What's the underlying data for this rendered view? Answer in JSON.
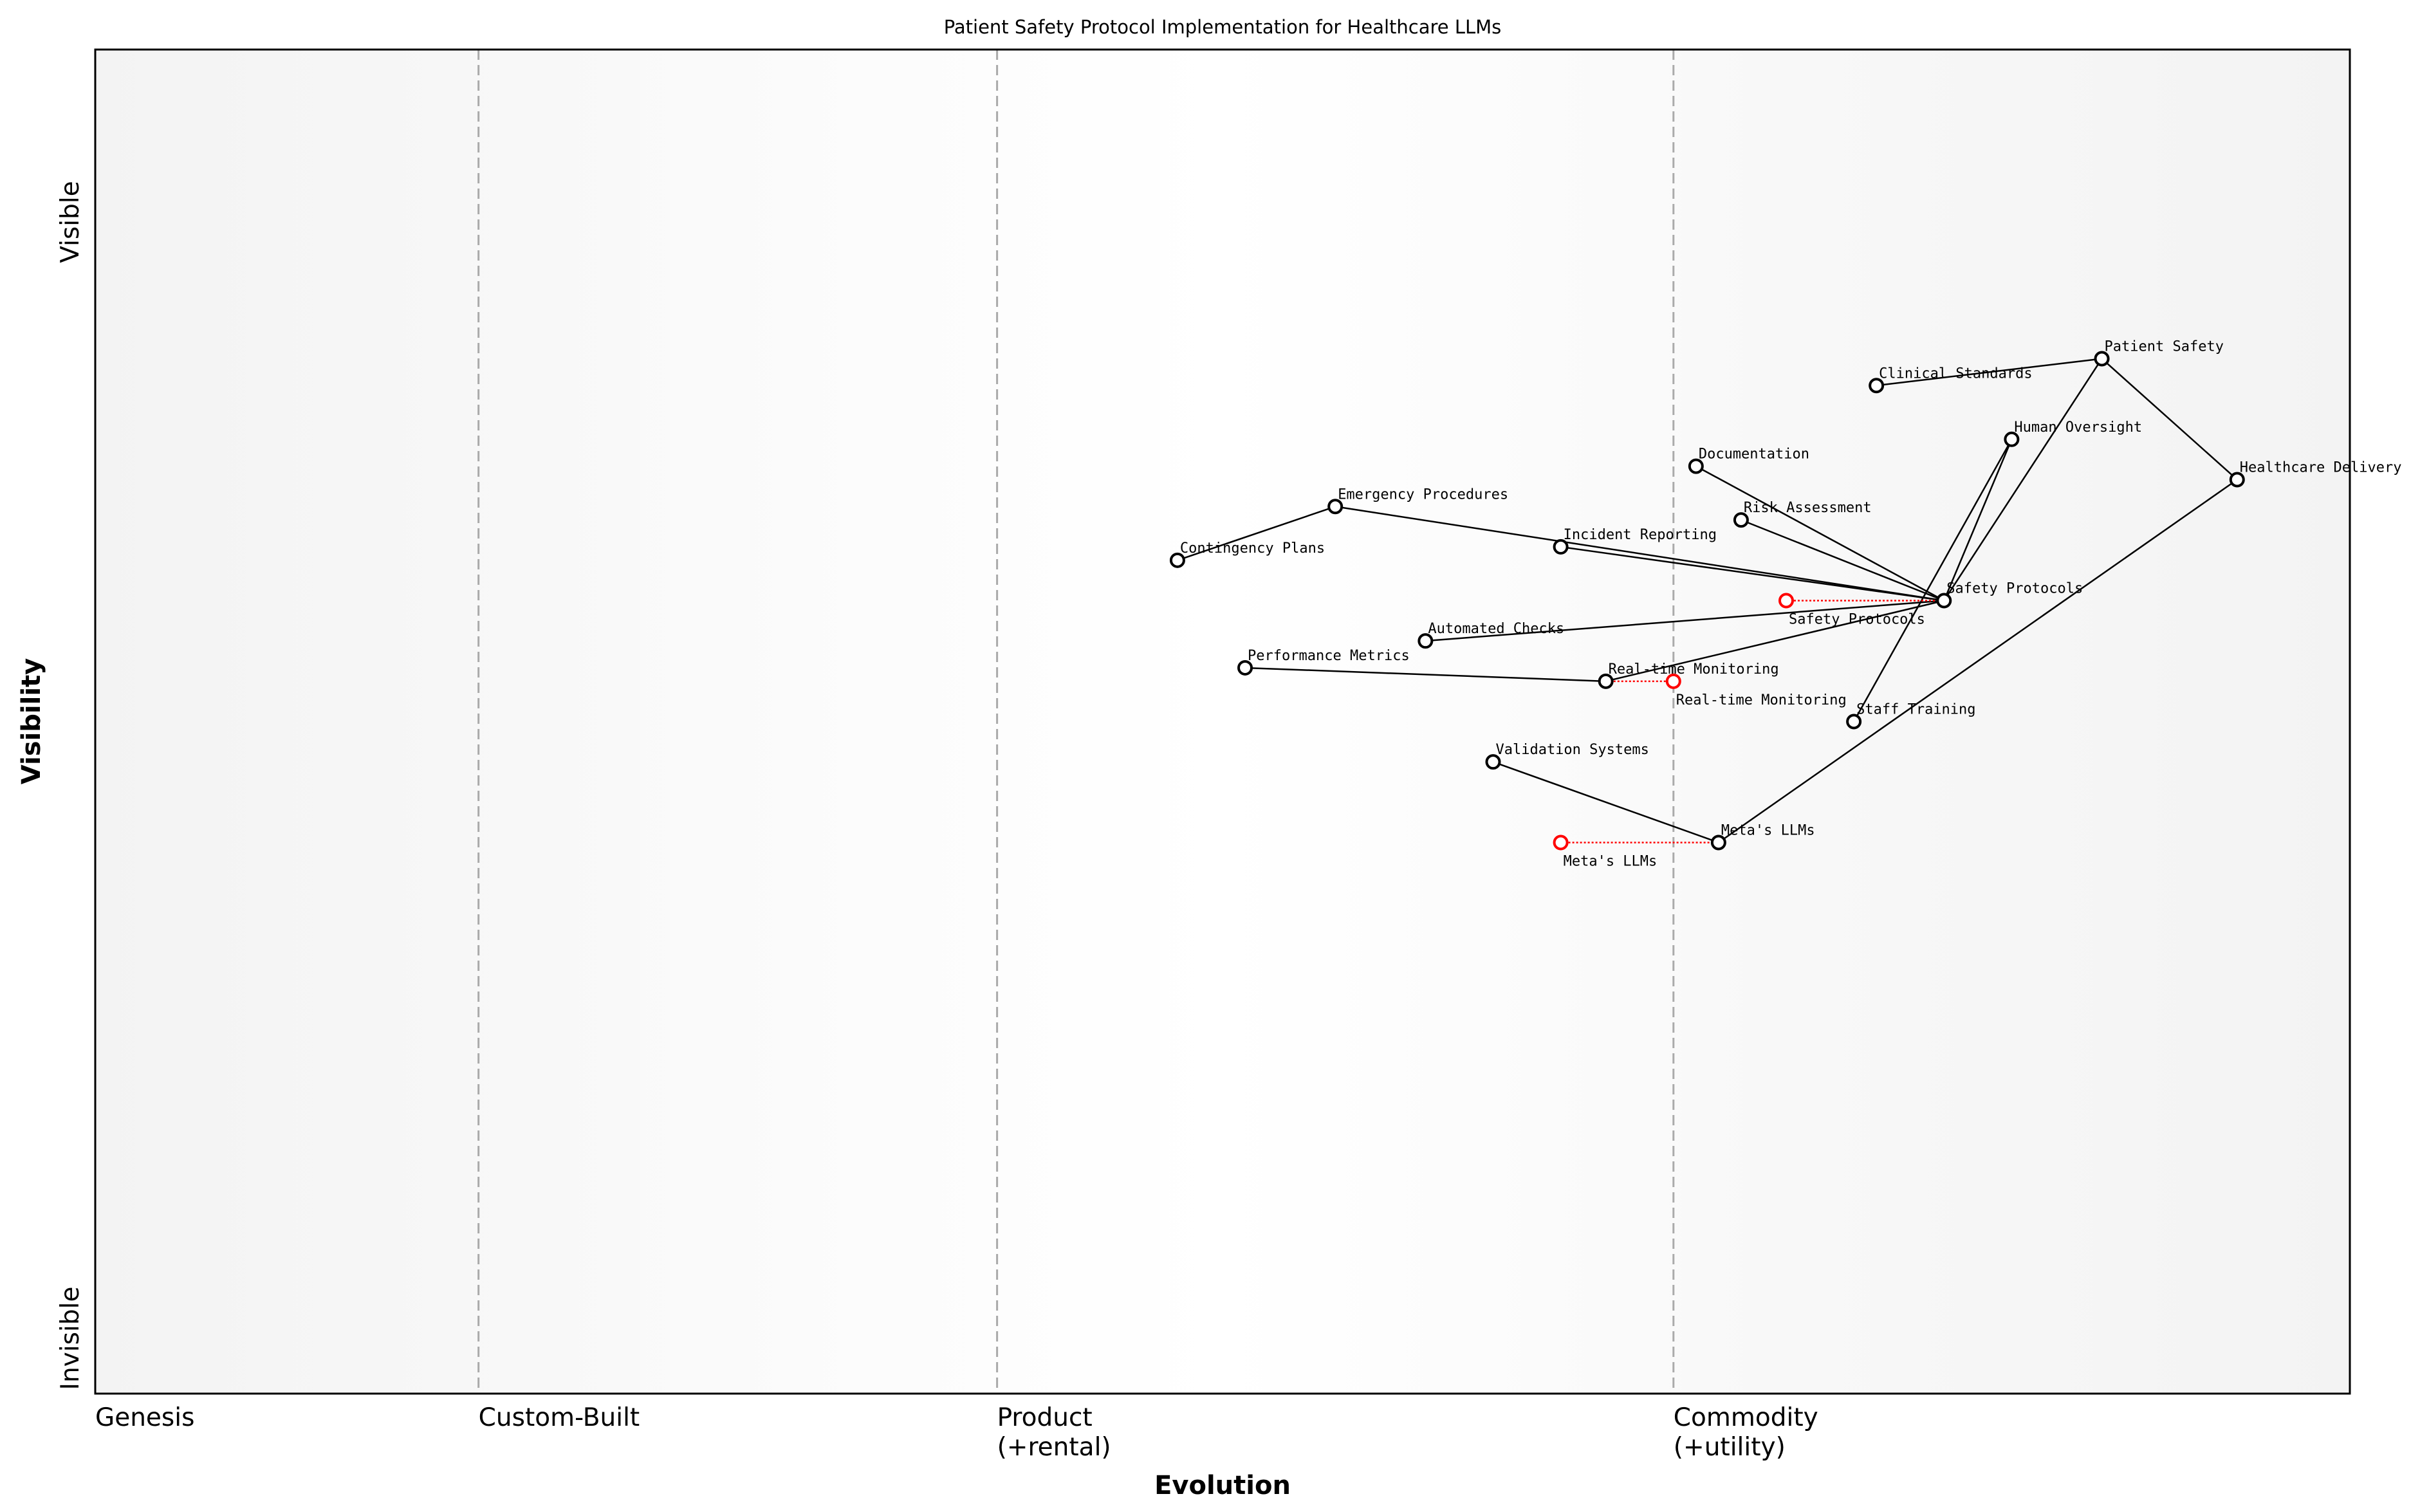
{
  "chart_data": {
    "type": "scatter",
    "title": "Patient Safety Protocol Implementation for Healthcare LLMs",
    "xlabel": "Evolution",
    "ylabel": "Visibility",
    "xlim": [
      0,
      1
    ],
    "ylim": [
      0,
      1
    ],
    "grid": false,
    "x_stages": [
      {
        "label": "Genesis",
        "x": 0
      },
      {
        "label": "Custom-Built",
        "x": 0.17
      },
      {
        "label": "Product\n(+rental)",
        "x": 0.4
      },
      {
        "label": "Commodity\n(+utility)",
        "x": 0.7
      }
    ],
    "y_labels": {
      "top": "Visible",
      "bottom": "Invisible"
    },
    "nodes": [
      {
        "id": "patient_safety",
        "label": "Patient Safety",
        "x": 0.89,
        "y": 0.77
      },
      {
        "id": "clinical_standards",
        "label": "Clinical Standards",
        "x": 0.79,
        "y": 0.75
      },
      {
        "id": "human_oversight",
        "label": "Human Oversight",
        "x": 0.85,
        "y": 0.71
      },
      {
        "id": "healthcare_delivery",
        "label": "Healthcare Delivery",
        "x": 0.95,
        "y": 0.68
      },
      {
        "id": "documentation",
        "label": "Documentation",
        "x": 0.71,
        "y": 0.69
      },
      {
        "id": "risk_assessment",
        "label": "Risk Assessment",
        "x": 0.73,
        "y": 0.65
      },
      {
        "id": "emergency_procedures",
        "label": "Emergency Procedures",
        "x": 0.55,
        "y": 0.66
      },
      {
        "id": "incident_reporting",
        "label": "Incident Reporting",
        "x": 0.65,
        "y": 0.63
      },
      {
        "id": "contingency_plans",
        "label": "Contingency Plans",
        "x": 0.48,
        "y": 0.62
      },
      {
        "id": "safety_protocols",
        "label": "Safety Protocols",
        "x": 0.82,
        "y": 0.59
      },
      {
        "id": "automated_checks",
        "label": "Automated Checks",
        "x": 0.59,
        "y": 0.56
      },
      {
        "id": "performance_metrics",
        "label": "Performance Metrics",
        "x": 0.51,
        "y": 0.54
      },
      {
        "id": "realtime_monitoring",
        "label": "Real-time Monitoring",
        "x": 0.67,
        "y": 0.53
      },
      {
        "id": "staff_training",
        "label": "Staff Training",
        "x": 0.78,
        "y": 0.5
      },
      {
        "id": "validation_systems",
        "label": "Validation Systems",
        "x": 0.62,
        "y": 0.47
      },
      {
        "id": "metas_llms",
        "label": "Meta's LLMs",
        "x": 0.72,
        "y": 0.41
      }
    ],
    "evolved_nodes": [
      {
        "of": "safety_protocols",
        "label": "Safety Protocols",
        "x": 0.75,
        "y": 0.59
      },
      {
        "of": "realtime_monitoring",
        "label": "Real-time Monitoring",
        "x": 0.7,
        "y": 0.53
      },
      {
        "of": "metas_llms",
        "label": "Meta's LLMs",
        "x": 0.65,
        "y": 0.41
      }
    ],
    "edges": [
      [
        "clinical_standards",
        "patient_safety"
      ],
      [
        "patient_safety",
        "healthcare_delivery"
      ],
      [
        "patient_safety",
        "safety_protocols"
      ],
      [
        "human_oversight",
        "safety_protocols"
      ],
      [
        "human_oversight",
        "staff_training"
      ],
      [
        "healthcare_delivery",
        "metas_llms"
      ],
      [
        "documentation",
        "safety_protocols"
      ],
      [
        "risk_assessment",
        "safety_protocols"
      ],
      [
        "emergency_procedures",
        "safety_protocols"
      ],
      [
        "incident_reporting",
        "safety_protocols"
      ],
      [
        "contingency_plans",
        "emergency_procedures"
      ],
      [
        "automated_checks",
        "safety_protocols"
      ],
      [
        "realtime_monitoring",
        "safety_protocols"
      ],
      [
        "performance_metrics",
        "realtime_monitoring"
      ],
      [
        "validation_systems",
        "metas_llms"
      ]
    ],
    "colors": {
      "node": "#000000",
      "evolved": "#ff0000",
      "stage_line": "#aaaaaa"
    }
  }
}
